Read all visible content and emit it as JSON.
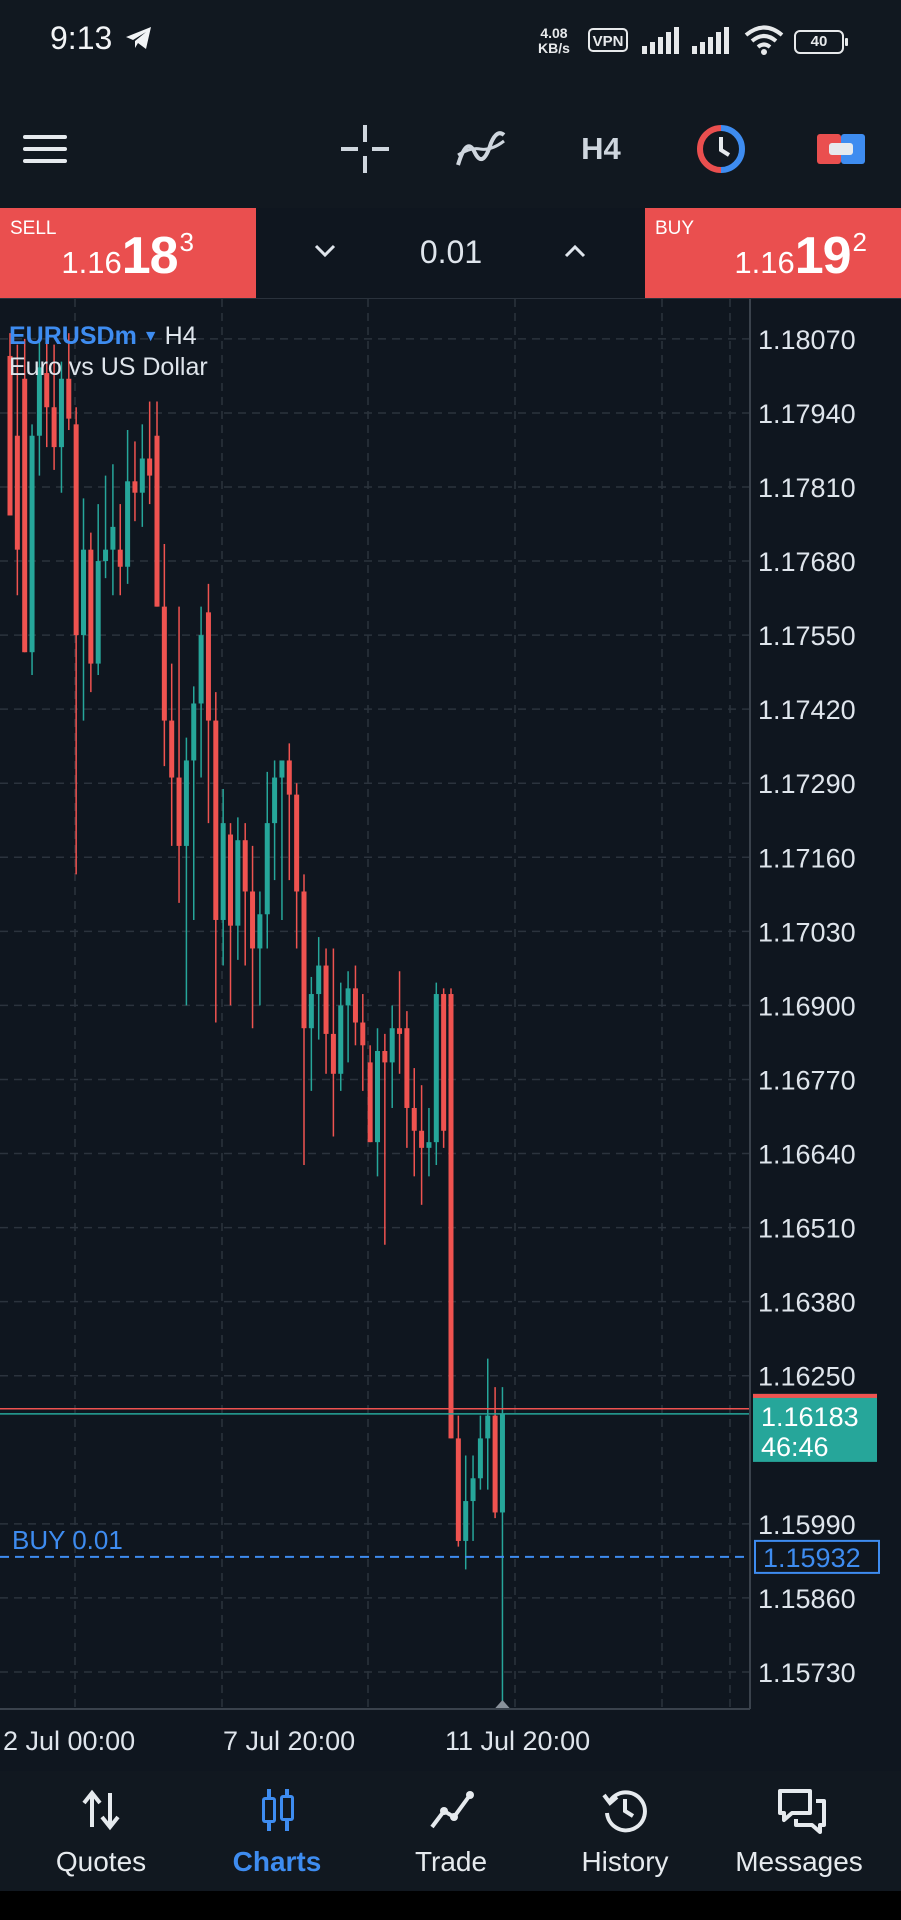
{
  "status_bar": {
    "time": "9:13",
    "net_speed_value": "4.08",
    "net_speed_unit": "KB/s",
    "vpn": "VPN",
    "battery": "40"
  },
  "toolbar": {
    "menu_icon": "hamburger-menu-icon",
    "crosshair_icon": "crosshair-icon",
    "indicators_icon": "indicators-icon",
    "timeframe": "H4",
    "clock_icon": "clock-icon",
    "toggle_icon": "toggle-icon"
  },
  "trade": {
    "sell_label": "SELL",
    "sell_price_small": "1.16",
    "sell_price_big": "18",
    "sell_price_sup": "3",
    "buy_label": "BUY",
    "buy_price_small": "1.16",
    "buy_price_big": "19",
    "buy_price_sup": "2",
    "lot": "0.01"
  },
  "chart": {
    "symbol": "EURUSDm",
    "timeframe": "H4",
    "description": "Euro vs US Dollar",
    "current_price": "1.16183",
    "countdown": "46:46",
    "order_label": "BUY 0.01",
    "order_price": "1.15932",
    "buy_line_value": 1.16192,
    "colors": {
      "up": "#26a69a",
      "down": "#ef5350",
      "grid": "#2b333d",
      "order_line": "#3e8cf0",
      "background": "#0f161f"
    }
  },
  "chart_data": {
    "type": "candlestick",
    "y_axis_labels": [
      "1.18070",
      "1.17940",
      "1.17810",
      "1.17680",
      "1.17550",
      "1.17420",
      "1.17290",
      "1.17160",
      "1.17030",
      "1.16900",
      "1.16770",
      "1.16640",
      "1.16510",
      "1.16380",
      "1.16250",
      "1.15990",
      "1.15860",
      "1.15730"
    ],
    "y_range": [
      1.15665,
      1.1814
    ],
    "x_labels": [
      "2 Jul 00:00",
      "7 Jul 20:00",
      "11 Jul 20:00"
    ],
    "grid": true,
    "candles": [
      {
        "o": 1.1804,
        "h": 1.1808,
        "l": 1.1776,
        "c": 1.1776
      },
      {
        "o": 1.179,
        "h": 1.1806,
        "l": 1.1762,
        "c": 1.177
      },
      {
        "o": 1.18,
        "h": 1.1807,
        "l": 1.1752,
        "c": 1.1752
      },
      {
        "o": 1.1752,
        "h": 1.1792,
        "l": 1.1748,
        "c": 1.179
      },
      {
        "o": 1.179,
        "h": 1.1809,
        "l": 1.1783,
        "c": 1.1802
      },
      {
        "o": 1.1801,
        "h": 1.1808,
        "l": 1.1788,
        "c": 1.1795
      },
      {
        "o": 1.1795,
        "h": 1.1806,
        "l": 1.1784,
        "c": 1.1788
      },
      {
        "o": 1.1788,
        "h": 1.1803,
        "l": 1.178,
        "c": 1.18
      },
      {
        "o": 1.18,
        "h": 1.1808,
        "l": 1.1791,
        "c": 1.1793
      },
      {
        "o": 1.1792,
        "h": 1.1795,
        "l": 1.1713,
        "c": 1.1755
      },
      {
        "o": 1.1755,
        "h": 1.1779,
        "l": 1.174,
        "c": 1.177
      },
      {
        "o": 1.177,
        "h": 1.1773,
        "l": 1.1745,
        "c": 1.175
      },
      {
        "o": 1.175,
        "h": 1.1778,
        "l": 1.1748,
        "c": 1.1768
      },
      {
        "o": 1.1768,
        "h": 1.1783,
        "l": 1.1765,
        "c": 1.177
      },
      {
        "o": 1.177,
        "h": 1.1785,
        "l": 1.1762,
        "c": 1.1774
      },
      {
        "o": 1.177,
        "h": 1.1778,
        "l": 1.1762,
        "c": 1.1767
      },
      {
        "o": 1.1767,
        "h": 1.1791,
        "l": 1.1764,
        "c": 1.1782
      },
      {
        "o": 1.1782,
        "h": 1.1789,
        "l": 1.1775,
        "c": 1.178
      },
      {
        "o": 1.178,
        "h": 1.1792,
        "l": 1.1774,
        "c": 1.1786
      },
      {
        "o": 1.1786,
        "h": 1.1796,
        "l": 1.1778,
        "c": 1.1783
      },
      {
        "o": 1.179,
        "h": 1.1796,
        "l": 1.176,
        "c": 1.176
      },
      {
        "o": 1.176,
        "h": 1.1771,
        "l": 1.1732,
        "c": 1.174
      },
      {
        "o": 1.174,
        "h": 1.175,
        "l": 1.1718,
        "c": 1.173
      },
      {
        "o": 1.173,
        "h": 1.176,
        "l": 1.1708,
        "c": 1.1718
      },
      {
        "o": 1.1718,
        "h": 1.1737,
        "l": 1.169,
        "c": 1.1733
      },
      {
        "o": 1.1733,
        "h": 1.1746,
        "l": 1.1705,
        "c": 1.1743
      },
      {
        "o": 1.1743,
        "h": 1.176,
        "l": 1.173,
        "c": 1.1755
      },
      {
        "o": 1.1759,
        "h": 1.1764,
        "l": 1.1722,
        "c": 1.174
      },
      {
        "o": 1.174,
        "h": 1.1745,
        "l": 1.1687,
        "c": 1.1705
      },
      {
        "o": 1.1705,
        "h": 1.1728,
        "l": 1.1697,
        "c": 1.1722
      },
      {
        "o": 1.172,
        "h": 1.1722,
        "l": 1.169,
        "c": 1.1704
      },
      {
        "o": 1.1704,
        "h": 1.1723,
        "l": 1.1698,
        "c": 1.1719
      },
      {
        "o": 1.1719,
        "h": 1.1722,
        "l": 1.1697,
        "c": 1.171
      },
      {
        "o": 1.171,
        "h": 1.1718,
        "l": 1.1686,
        "c": 1.17
      },
      {
        "o": 1.17,
        "h": 1.171,
        "l": 1.169,
        "c": 1.1706
      },
      {
        "o": 1.1706,
        "h": 1.1731,
        "l": 1.17,
        "c": 1.1722
      },
      {
        "o": 1.1722,
        "h": 1.1733,
        "l": 1.1712,
        "c": 1.173
      },
      {
        "o": 1.173,
        "h": 1.1733,
        "l": 1.1705,
        "c": 1.1733
      },
      {
        "o": 1.1733,
        "h": 1.1736,
        "l": 1.1712,
        "c": 1.1727
      },
      {
        "o": 1.1727,
        "h": 1.1729,
        "l": 1.17,
        "c": 1.171
      },
      {
        "o": 1.171,
        "h": 1.1713,
        "l": 1.1662,
        "c": 1.1686
      },
      {
        "o": 1.1686,
        "h": 1.1695,
        "l": 1.1675,
        "c": 1.1692
      },
      {
        "o": 1.1692,
        "h": 1.1702,
        "l": 1.1684,
        "c": 1.1697
      },
      {
        "o": 1.1697,
        "h": 1.17,
        "l": 1.1678,
        "c": 1.1685
      },
      {
        "o": 1.1685,
        "h": 1.17,
        "l": 1.1667,
        "c": 1.1678
      },
      {
        "o": 1.1678,
        "h": 1.1694,
        "l": 1.1675,
        "c": 1.169
      },
      {
        "o": 1.169,
        "h": 1.1696,
        "l": 1.168,
        "c": 1.1693
      },
      {
        "o": 1.1693,
        "h": 1.1697,
        "l": 1.1683,
        "c": 1.1687
      },
      {
        "o": 1.1687,
        "h": 1.1692,
        "l": 1.1675,
        "c": 1.1683
      },
      {
        "o": 1.168,
        "h": 1.1683,
        "l": 1.1666,
        "c": 1.1666
      },
      {
        "o": 1.1666,
        "h": 1.1686,
        "l": 1.166,
        "c": 1.1682
      },
      {
        "o": 1.1682,
        "h": 1.1685,
        "l": 1.1648,
        "c": 1.168
      },
      {
        "o": 1.168,
        "h": 1.169,
        "l": 1.1672,
        "c": 1.1686
      },
      {
        "o": 1.1686,
        "h": 1.1696,
        "l": 1.1678,
        "c": 1.1685
      },
      {
        "o": 1.1686,
        "h": 1.1689,
        "l": 1.1665,
        "c": 1.1672
      },
      {
        "o": 1.1672,
        "h": 1.1679,
        "l": 1.166,
        "c": 1.1668
      },
      {
        "o": 1.1668,
        "h": 1.1676,
        "l": 1.1655,
        "c": 1.1665
      },
      {
        "o": 1.1665,
        "h": 1.1672,
        "l": 1.166,
        "c": 1.1666
      },
      {
        "o": 1.1666,
        "h": 1.1694,
        "l": 1.1662,
        "c": 1.1692
      },
      {
        "o": 1.1692,
        "h": 1.1693,
        "l": 1.1665,
        "c": 1.1668
      },
      {
        "o": 1.1692,
        "h": 1.1693,
        "l": 1.1614,
        "c": 1.1614
      },
      {
        "o": 1.1614,
        "h": 1.1618,
        "l": 1.1595,
        "c": 1.1596
      },
      {
        "o": 1.1596,
        "h": 1.1611,
        "l": 1.1591,
        "c": 1.1603
      },
      {
        "o": 1.1603,
        "h": 1.1611,
        "l": 1.1596,
        "c": 1.1607
      },
      {
        "o": 1.1607,
        "h": 1.1618,
        "l": 1.1605,
        "c": 1.1614
      },
      {
        "o": 1.1614,
        "h": 1.1628,
        "l": 1.1605,
        "c": 1.1618
      },
      {
        "o": 1.1618,
        "h": 1.1623,
        "l": 1.16,
        "c": 1.1601
      },
      {
        "o": 1.1601,
        "h": 1.1623,
        "l": 1.1567,
        "c": 1.16183
      }
    ]
  },
  "bottom_nav": {
    "items": [
      {
        "label": "Quotes",
        "icon": "quotes-arrows-icon"
      },
      {
        "label": "Charts",
        "icon": "charts-candles-icon"
      },
      {
        "label": "Trade",
        "icon": "trade-line-icon"
      },
      {
        "label": "History",
        "icon": "history-clock-icon"
      },
      {
        "label": "Messages",
        "icon": "messages-bubbles-icon"
      }
    ]
  }
}
